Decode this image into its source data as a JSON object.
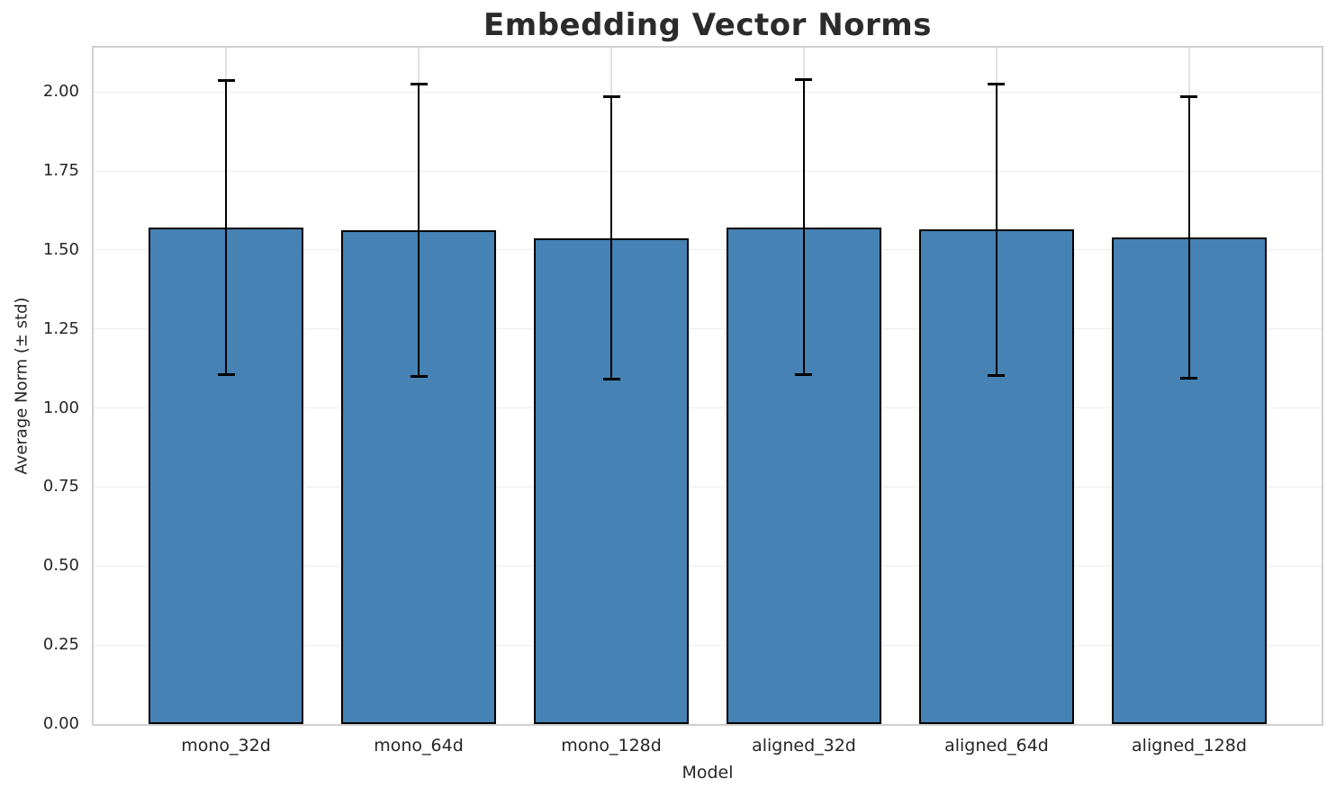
{
  "chart_data": {
    "type": "bar",
    "title": "Embedding Vector Norms",
    "xlabel": "Model",
    "ylabel": "Average Norm (± std)",
    "categories": [
      "mono_32d",
      "mono_64d",
      "mono_128d",
      "aligned_32d",
      "aligned_64d",
      "aligned_128d"
    ],
    "values": [
      1.571,
      1.563,
      1.538,
      1.572,
      1.564,
      1.539
    ],
    "errors": [
      0.466,
      0.463,
      0.446,
      0.467,
      0.462,
      0.446
    ],
    "yticks": [
      0.0,
      0.25,
      0.5,
      0.75,
      1.0,
      1.25,
      1.5,
      1.75,
      2.0
    ],
    "ytick_labels": [
      "0.00",
      "0.25",
      "0.50",
      "0.75",
      "1.00",
      "1.25",
      "1.50",
      "1.75",
      "2.00"
    ],
    "ylim": [
      0,
      2.14
    ],
    "xlim": [
      -0.687,
      5.687
    ],
    "bar_width": 0.8,
    "grid": true,
    "legend": "none",
    "colors": {
      "bar_fill": "#4682b4",
      "bar_edge": "#000000",
      "error_bar": "#000000",
      "grid_h": "#ededed",
      "grid_v": "#e2e2e2",
      "spine": "#d0d0d0",
      "text": "#262626",
      "title": "#2b2b2b",
      "background": "#ffffff"
    }
  }
}
